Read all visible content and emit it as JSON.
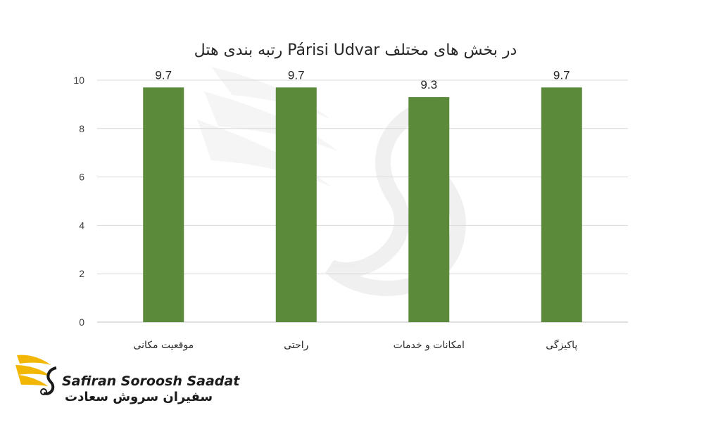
{
  "chart_data": {
    "type": "bar",
    "title": "رتبه بندی هتل Párisi Udvar در بخش های مختلف",
    "categories": [
      "موقعیت مکانی",
      "راحتی",
      "امکانات و خدمات",
      "پاکیزگی"
    ],
    "values": [
      9.7,
      9.7,
      9.3,
      9.7
    ],
    "value_labels": [
      "9.7",
      "9.7",
      "9.3",
      "9.7"
    ],
    "y_ticks": [
      "0",
      "2",
      "4",
      "6",
      "8",
      "10"
    ],
    "ylim": [
      0,
      10
    ],
    "grid": true,
    "bar_color": "#5a8a3a",
    "xlabel": "",
    "ylabel": ""
  },
  "brand": {
    "name_en": "Safiran Soroosh Saadat",
    "name_fa": "سفیران سروش سعادت",
    "logo_icon": "winged-s-logo-icon",
    "accent_color": "#f2b705"
  }
}
